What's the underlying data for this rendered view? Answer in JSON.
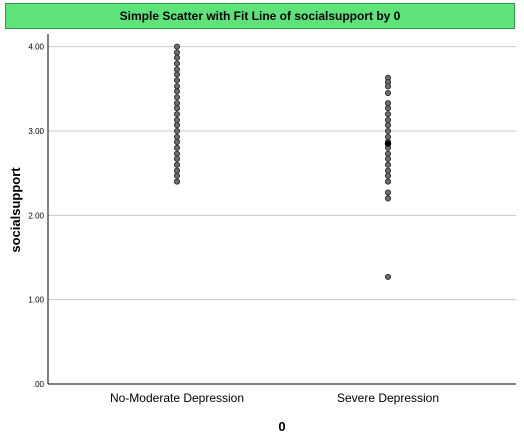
{
  "chart_data": {
    "type": "scatter",
    "title": "Simple Scatter with Fit Line of socialsupport by 0",
    "xlabel": "0",
    "ylabel": "socialsupport",
    "categories": [
      "No-Moderate Depression",
      "Severe Depression"
    ],
    "y_ticks": [
      ".00",
      "1.00",
      "2.00",
      "3.00",
      "4.00"
    ],
    "ylim": [
      0,
      4.15
    ],
    "grid": true,
    "series": [
      {
        "category": "No-Moderate Depression",
        "values": [
          4.0,
          3.93,
          3.87,
          3.8,
          3.73,
          3.67,
          3.6,
          3.53,
          3.47,
          3.4,
          3.33,
          3.27,
          3.2,
          3.13,
          3.07,
          3.0,
          2.93,
          2.87,
          2.8,
          2.73,
          2.67,
          2.6,
          2.53,
          2.47,
          2.4
        ]
      },
      {
        "category": "Severe Depression",
        "values": [
          3.63,
          3.58,
          3.53,
          3.45,
          3.33,
          3.27,
          3.2,
          3.13,
          3.07,
          3.0,
          2.93,
          2.87,
          2.8,
          2.73,
          2.67,
          2.6,
          2.53,
          2.47,
          2.4,
          2.27,
          2.2,
          1.27
        ],
        "highlight": [
          2.85
        ]
      }
    ],
    "colors": {
      "title_bg": "#5ee37a",
      "title_border": "#2e9e44",
      "marker_fill": "#6e6e6e",
      "marker_stroke": "#2b2b2b",
      "highlight_fill": "#000000",
      "grid": "#c8c8c8",
      "axis": "#000000"
    }
  }
}
